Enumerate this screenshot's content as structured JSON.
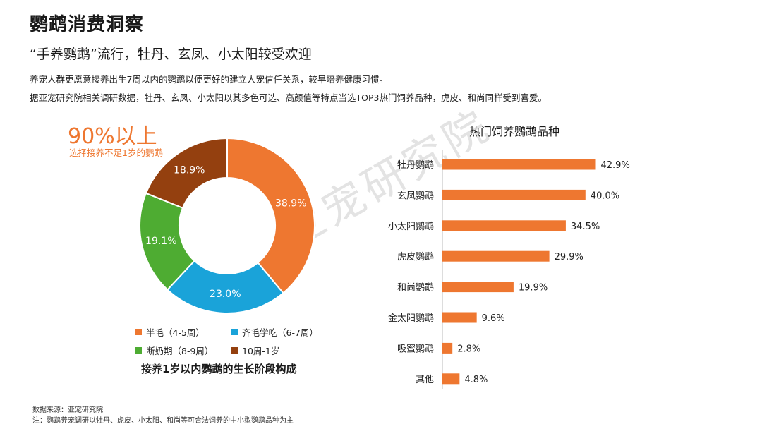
{
  "title": "鹦鹉消费洞察",
  "subtitle": "“手养鹦鹉”流行，牡丹、玄凤、小太阳较受欢迎",
  "desc": [
    "养宠人群更愿意接养出生7周以内的鹦鹉以便更好的建立人宠信任关系，较早培养健康习惯。",
    "据亚宠研究院相关调研数据，牡丹、玄凤、小太阳以其多色可选、高颜值等特点当选TOP3热门饲养品种，虎皮、和尚同样受到喜爱。"
  ],
  "big_stat": "90%以上",
  "big_stat_sub": "选择接养不足1岁的鹦鹉",
  "watermark": "亚宠研究院",
  "footer": {
    "source": "数据来源：亚宠研究院",
    "note": "注：鹦鹉养宠调研以牡丹、虎皮、小太阳、和尚等可合法饲养的中小型鹦鹉品种为主"
  },
  "colors": {
    "orange": "#ee7730",
    "blue": "#1aa3d9",
    "green": "#4eac32",
    "brown": "#94400f"
  },
  "chart_data": [
    {
      "type": "pie",
      "donut": true,
      "title": "接养1岁以内鹦鹉的生长阶段构成",
      "slices": [
        {
          "label": "半毛（4-5周）",
          "value": 38.9,
          "display": "38.9%",
          "color": "#ee7730"
        },
        {
          "label": "齐毛学吃（6-7周）",
          "value": 23.0,
          "display": "23.0%",
          "color": "#1aa3d9"
        },
        {
          "label": "断奶期（8-9周）",
          "value": 19.1,
          "display": "19.1%",
          "color": "#4eac32"
        },
        {
          "label": "10周-1岁",
          "value": 18.9,
          "display": "18.9%",
          "color": "#94400f"
        }
      ],
      "legend_position": "bottom"
    },
    {
      "type": "bar",
      "orientation": "horizontal",
      "title": "热门饲养鹦鹉品种",
      "categories": [
        "牡丹鹦鹉",
        "玄凤鹦鹉",
        "小太阳鹦鹉",
        "虎皮鹦鹉",
        "和尚鹦鹉",
        "金太阳鹦鹉",
        "吸蜜鹦鹉",
        "其他"
      ],
      "values": [
        42.9,
        40.0,
        34.5,
        29.9,
        19.9,
        9.6,
        2.8,
        4.8
      ],
      "labels": [
        "42.9%",
        "40.0%",
        "34.5%",
        "29.9%",
        "19.9%",
        "9.6%",
        "2.8%",
        "4.8%"
      ],
      "color": "#ee7730",
      "xlim": [
        0,
        50
      ]
    }
  ]
}
